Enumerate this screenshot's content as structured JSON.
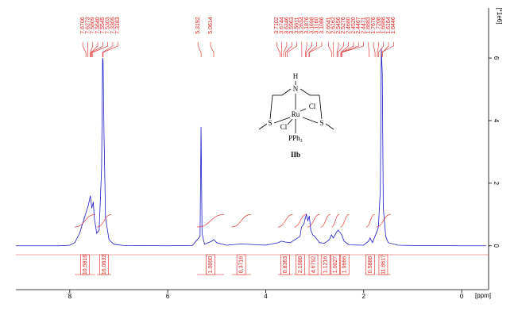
{
  "chart_data": {
    "type": "nmr",
    "x_label": "[ppm]",
    "y_label": "[*1e6]",
    "xlim": [
      9.1,
      -0.55
    ],
    "xticks": [
      8,
      6,
      4,
      2,
      0
    ],
    "ylim": [
      -1.4,
      7.6
    ],
    "yticks": [
      0,
      2,
      4,
      6
    ],
    "series": [
      {
        "name": "spectrum",
        "color": "#1a1ac8",
        "x": [
          9.1,
          8.2,
          8.0,
          7.9,
          7.8,
          7.7,
          7.62,
          7.58,
          7.55,
          7.52,
          7.5,
          7.45,
          7.4,
          7.35,
          7.33,
          7.32,
          7.3,
          7.27,
          7.2,
          7.1,
          6.9,
          6.0,
          5.5,
          5.34,
          5.32,
          5.3,
          5.25,
          5.1,
          5.06,
          5.0,
          4.8,
          4.5,
          4.0,
          3.75,
          3.68,
          3.6,
          3.5,
          3.3,
          3.27,
          3.22,
          3.19,
          3.17,
          3.14,
          3.11,
          3.08,
          3.04,
          3.0,
          2.9,
          2.8,
          2.7,
          2.66,
          2.62,
          2.55,
          2.52,
          2.47,
          2.45,
          2.4,
          2.3,
          2.0,
          1.9,
          1.87,
          1.82,
          1.77,
          1.72,
          1.7,
          1.66,
          1.64,
          1.62,
          1.6,
          1.55,
          1.5,
          1.3,
          1.0,
          0.0,
          -0.5
        ],
        "values": [
          0,
          0,
          0.02,
          0.1,
          0.4,
          0.9,
          1.3,
          1.6,
          1.2,
          1.4,
          0.9,
          0.4,
          0.5,
          2.5,
          6.0,
          5.9,
          3.5,
          0.9,
          0.2,
          0.05,
          0.01,
          0,
          0.01,
          0.3,
          3.8,
          0.4,
          0.05,
          0.15,
          0.2,
          0.1,
          0.02,
          0.06,
          0.02,
          0.1,
          0.15,
          0.12,
          0.1,
          0.3,
          0.6,
          0.7,
          0.9,
          1.0,
          0.8,
          0.95,
          0.5,
          0.35,
          0.3,
          0.1,
          0.08,
          0.2,
          0.35,
          0.25,
          0.45,
          0.5,
          0.4,
          0.35,
          0.15,
          0.03,
          0.02,
          0.15,
          0.25,
          0.1,
          0.3,
          0.5,
          0.6,
          1.8,
          6.3,
          5.5,
          1.2,
          0.3,
          0.1,
          0.02,
          0.01,
          0,
          0
        ]
      }
    ],
    "peaks": [
      7.6706,
      7.6273,
      7.5809,
      7.564,
      7.5545,
      7.5303,
      7.3305,
      7.3183,
      5.3192,
      5.0614,
      3.7102,
      3.6744,
      3.6346,
      3.5963,
      3.5611,
      3.2634,
      3.1876,
      3.1698,
      3.116,
      3.1086,
      2.6541,
      2.6162,
      2.5456,
      2.5276,
      2.468,
      2.452,
      2.4467,
      2.4471,
      1.8883,
      1.7676,
      1.7208,
      1.6988,
      1.6164,
      1.6446
    ],
    "peak_labels": [
      "7.6706",
      "7.6273",
      "7.5809",
      "7.5640",
      "7.5545",
      "7.5303",
      "7.3305",
      "7.3183",
      "5.3192",
      "5.0614",
      "3.7102",
      "3.6744",
      "3.6346",
      "3.5963",
      "3.5611",
      "3.2634",
      "3.1876",
      "3.1698",
      "3.1160",
      "3.1086",
      "2.6541",
      "2.6162",
      "2.5456",
      "2.5276",
      "2.4680",
      "2.4520",
      "2.4467",
      "2.4471",
      "1.8883",
      "1.7676",
      "1.7208",
      "1.6988",
      "1.6164",
      "1.6446"
    ],
    "integrals": [
      {
        "from": 7.9,
        "to": 7.48,
        "value": 10.5816,
        "label": "10.5816"
      },
      {
        "from": 7.45,
        "to": 7.15,
        "value": 16.0632,
        "label": "16.0632"
      },
      {
        "from": 5.4,
        "to": 4.85,
        "value": 1.0,
        "label": "1.0000"
      },
      {
        "from": 4.7,
        "to": 4.3,
        "value": 0.3716,
        "label": "0.3716"
      },
      {
        "from": 3.75,
        "to": 3.45,
        "value": 0.8363,
        "label": "0.8363"
      },
      {
        "from": 3.42,
        "to": 3.17,
        "value": 2.1088,
        "label": "2.1088"
      },
      {
        "from": 3.15,
        "to": 2.9,
        "value": 4.6792,
        "label": "4.6792"
      },
      {
        "from": 2.88,
        "to": 2.68,
        "value": 1.1216,
        "label": "1.1216"
      },
      {
        "from": 2.66,
        "to": 2.5,
        "value": 1.0027,
        "label": "1.0027"
      },
      {
        "from": 2.48,
        "to": 2.3,
        "value": 1.9666,
        "label": "1.9666"
      },
      {
        "from": 1.95,
        "to": 1.78,
        "value": 0.5888,
        "label": "0.5888"
      },
      {
        "from": 1.75,
        "to": 1.45,
        "value": 11.8617,
        "label": "11.8617"
      }
    ]
  },
  "structure": {
    "h": "H",
    "n": "N",
    "ru": "Ru",
    "cl_right": "Cl",
    "cl_left": "Cl",
    "s_left": "S",
    "s_right": "S",
    "pph3": "PPh₃",
    "label": "IIb"
  }
}
